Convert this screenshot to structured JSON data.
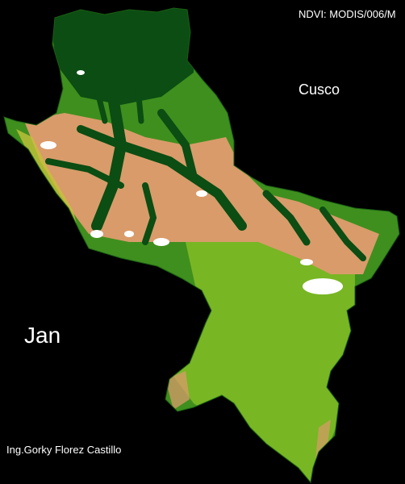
{
  "map": {
    "source": "NDVI: MODIS/006/M",
    "region": "Cusco",
    "month": "Jan",
    "author": "Ing.Gorky Florez Castillo"
  },
  "colors": {
    "background": "#000000",
    "vegetation_dense": "#0b4d12",
    "vegetation_medium": "#3f8f1e",
    "vegetation_light": "#78b624",
    "vegetation_sparse": "#c4c23a",
    "bare_soil": "#d99b6a",
    "snow_cloud": "#ffffff"
  }
}
